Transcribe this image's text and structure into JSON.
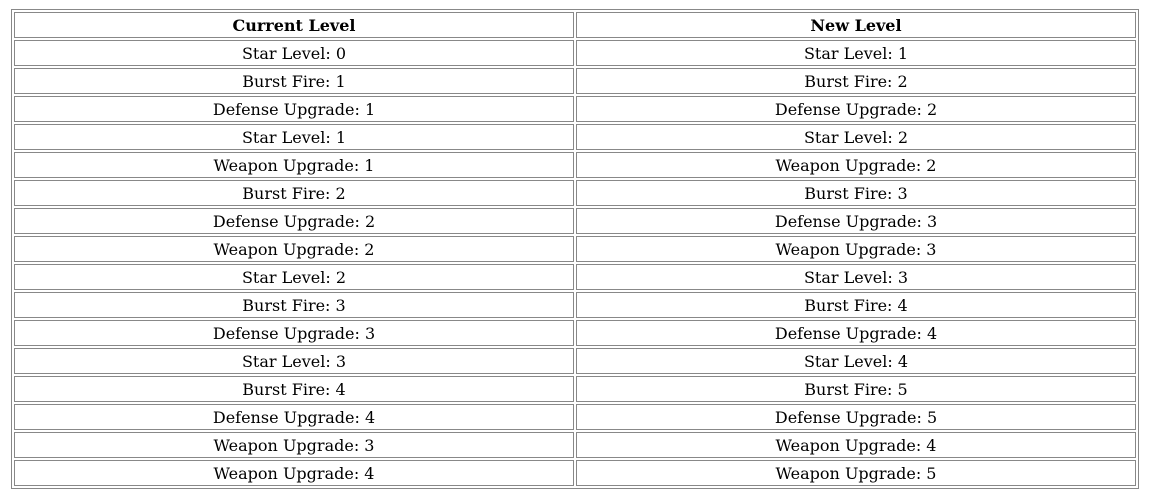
{
  "table": {
    "headers": [
      "Current Level",
      "New Level"
    ],
    "rows": [
      [
        "Star Level: 0",
        "Star Level: 1"
      ],
      [
        "Burst Fire: 1",
        "Burst Fire: 2"
      ],
      [
        "Defense Upgrade: 1",
        "Defense Upgrade: 2"
      ],
      [
        "Star Level: 1",
        "Star Level: 2"
      ],
      [
        "Weapon Upgrade: 1",
        "Weapon Upgrade: 2"
      ],
      [
        "Burst Fire: 2",
        "Burst Fire: 3"
      ],
      [
        "Defense Upgrade: 2",
        "Defense Upgrade: 3"
      ],
      [
        "Weapon Upgrade: 2",
        "Weapon Upgrade: 3"
      ],
      [
        "Star Level: 2",
        "Star Level: 3"
      ],
      [
        "Burst Fire: 3",
        "Burst Fire: 4"
      ],
      [
        "Defense Upgrade: 3",
        "Defense Upgrade: 4"
      ],
      [
        "Star Level: 3",
        "Star Level: 4"
      ],
      [
        "Burst Fire: 4",
        "Burst Fire: 5"
      ],
      [
        "Defense Upgrade: 4",
        "Defense Upgrade: 5"
      ],
      [
        "Weapon Upgrade: 3",
        "Weapon Upgrade: 4"
      ],
      [
        "Weapon Upgrade: 4",
        "Weapon Upgrade: 5"
      ]
    ]
  }
}
